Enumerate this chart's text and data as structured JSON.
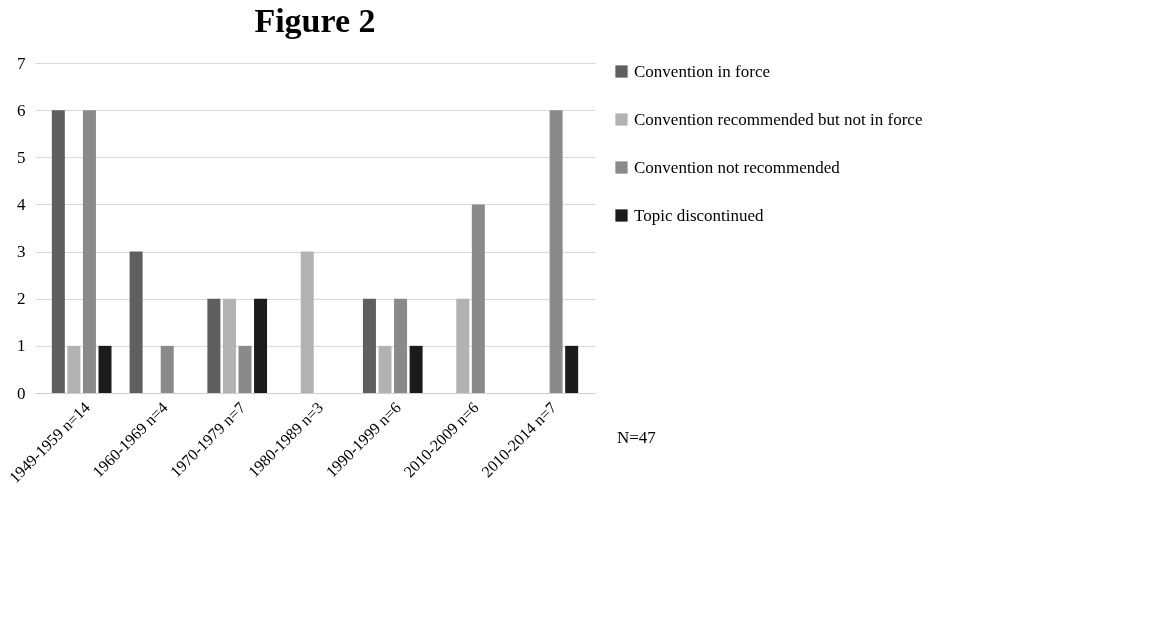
{
  "chart_data": {
    "type": "bar",
    "title": "Figure 2",
    "categories": [
      "1949-1959 n=14",
      "1960-1969 n=4",
      "1970-1979 n=7",
      "1980-1989 n=3",
      "1990-1999 n=6",
      "2010-2009 n=6",
      "2010-2014 n=7"
    ],
    "series": [
      {
        "name": "Convention in force",
        "color": "#5f5f5f",
        "values": [
          6,
          3,
          2,
          0,
          2,
          0,
          0
        ]
      },
      {
        "name": "Convention recommended but not in force",
        "color": "#b2b2b2",
        "values": [
          1,
          0,
          2,
          3,
          1,
          2,
          0
        ]
      },
      {
        "name": "Convention not recommended",
        "color": "#8a8a8a",
        "values": [
          6,
          1,
          1,
          0,
          2,
          4,
          6
        ]
      },
      {
        "name": "Topic discontinued",
        "color": "#1b1b1b",
        "values": [
          1,
          0,
          2,
          0,
          1,
          0,
          1
        ]
      }
    ],
    "ylim": [
      0,
      7
    ],
    "yticks": [
      0,
      1,
      2,
      3,
      4,
      5,
      6,
      7
    ],
    "grid": "y",
    "legend": "right",
    "annotations": [
      "N=47"
    ]
  }
}
